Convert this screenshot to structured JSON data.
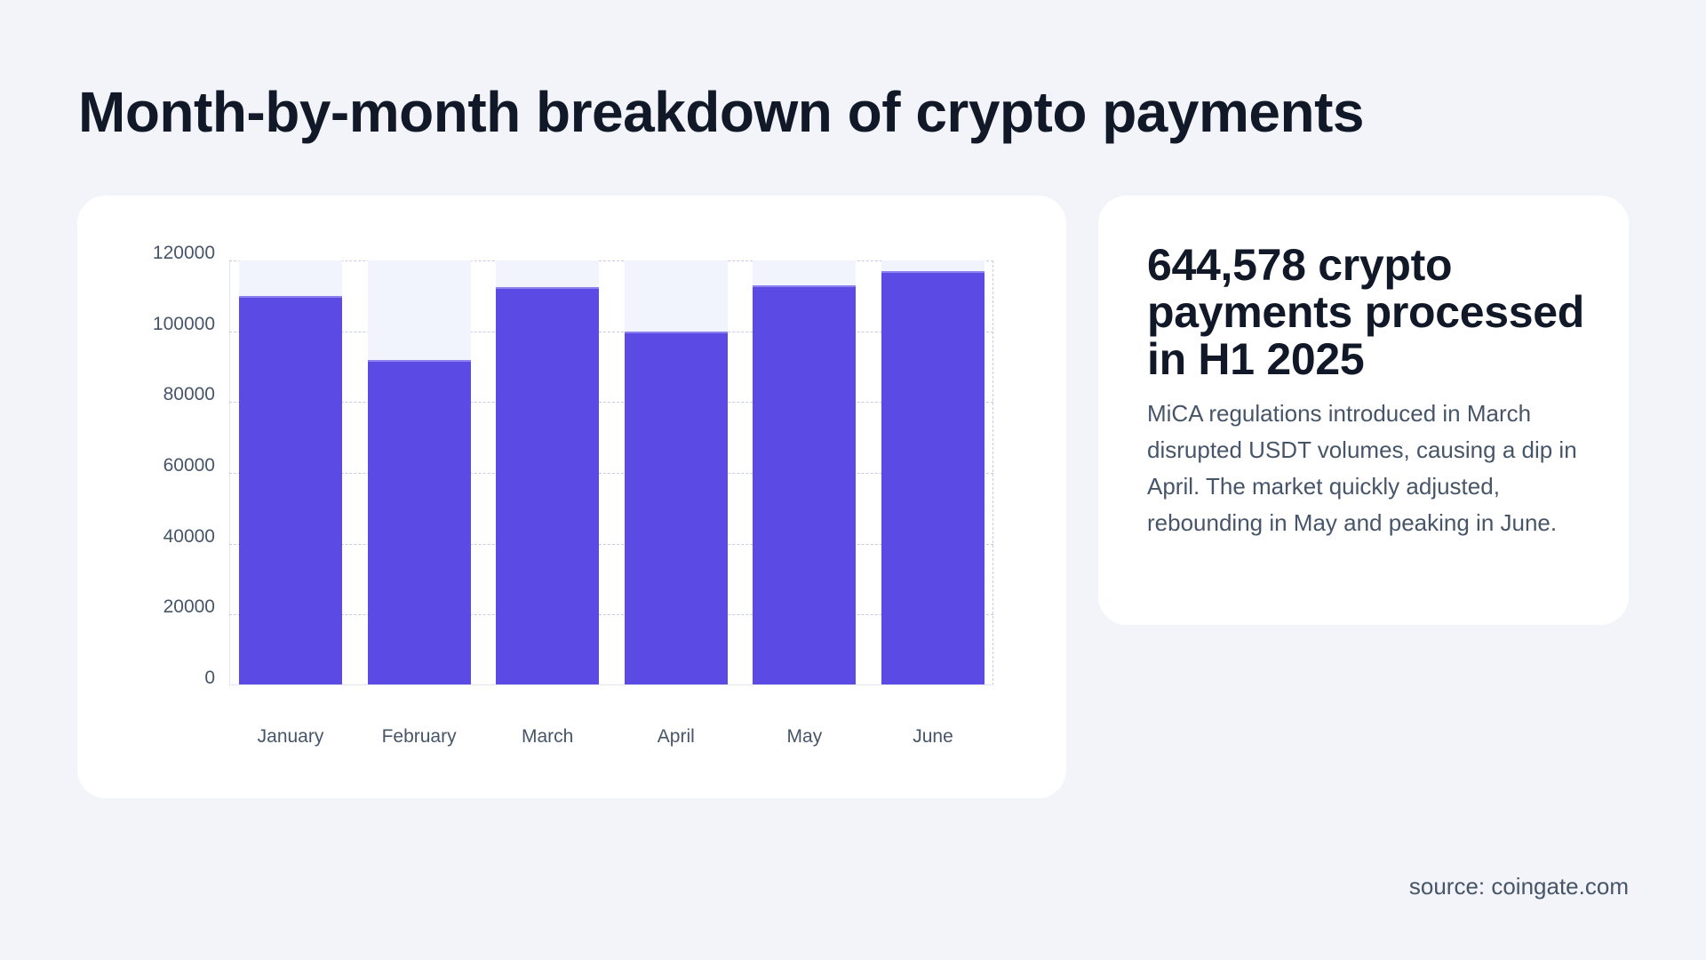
{
  "page": {
    "title": "Month-by-month breakdown of crypto payments",
    "source": "source: coingate.com"
  },
  "stat": {
    "heading": "644,578 crypto payments processed in H1 2025",
    "body": "MiCA regulations introduced in March disrupted USDT volumes, causing a dip in April. The market quickly adjusted, rebounding in May and peaking in June."
  },
  "colors": {
    "bar": "#5b4ae4",
    "bar_background": "#f1f4fd",
    "page_background": "#f2f4f9",
    "card_background": "#ffffff",
    "title_text": "#111827",
    "body_text": "#475569"
  },
  "chart_data": {
    "type": "bar",
    "title": "Month-by-month breakdown of crypto payments",
    "categories": [
      "January",
      "February",
      "March",
      "April",
      "May",
      "June"
    ],
    "values": [
      110000,
      92000,
      112500,
      100000,
      113000,
      117000
    ],
    "xlabel": "",
    "ylabel": "",
    "ylim": [
      0,
      120000
    ],
    "yticks": [
      0,
      20000,
      40000,
      60000,
      80000,
      100000,
      120000
    ],
    "ytick_labels": [
      "0",
      "20000",
      "40000",
      "60000",
      "80000",
      "100000",
      "120000"
    ],
    "grid": true,
    "legend": null
  }
}
